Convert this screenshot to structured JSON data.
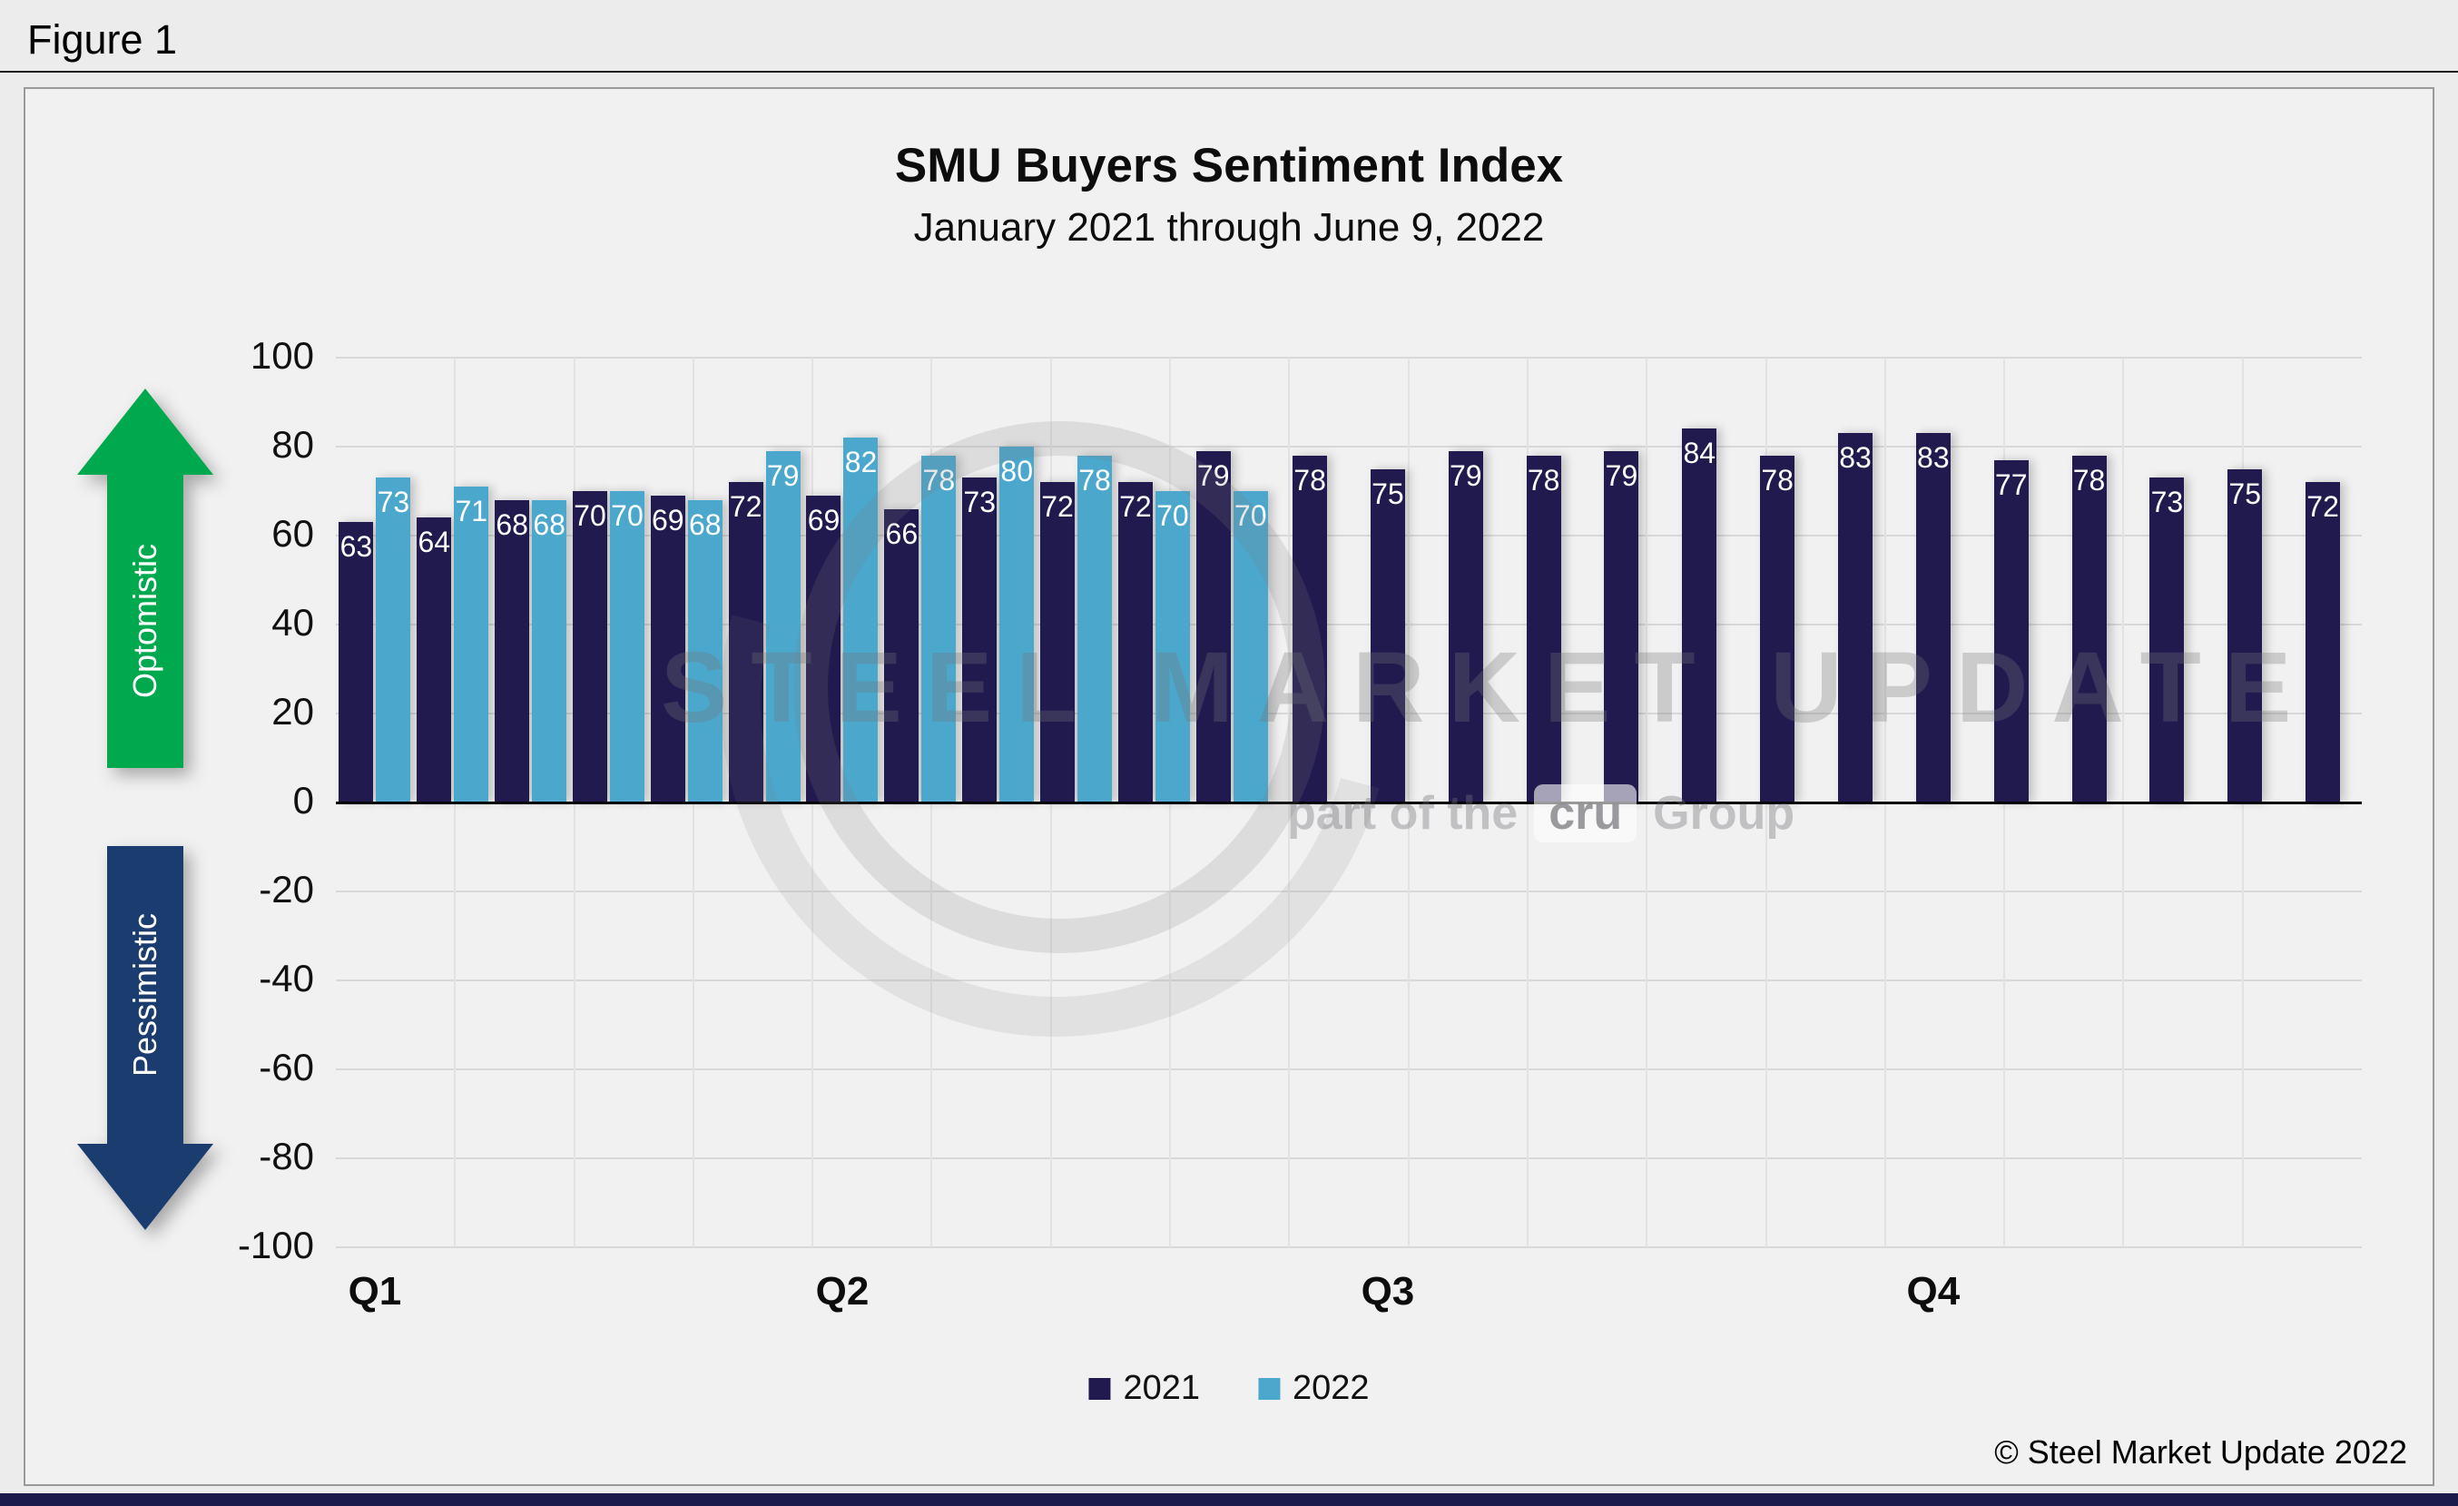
{
  "figure_label": "Figure 1",
  "axis_annotations": {
    "up": "Optomistic",
    "down": "Pessimistic"
  },
  "watermark": {
    "main": "STEEL MARKET UPDATE",
    "sub_prefix": "part of the",
    "sub_logo": "cru",
    "sub_suffix": "Group"
  },
  "copyright": "© Steel Market Update 2022",
  "colors": {
    "page_bg": "#ECECEC",
    "chart_bg": "#F1F1F1",
    "plot_bg": "#F1F1F1",
    "grid": "#D8D8D8",
    "grid_vertical": "#E2E2E2",
    "zero_axis": "#000000",
    "bar_2021": "#211A4F",
    "bar_2022": "#4BA7CB",
    "arrow_up_green": "#00A94E",
    "arrow_down_navy": "#1B3C6E",
    "bottom_bar": "#1A1A4D"
  },
  "chart_data": {
    "type": "bar",
    "title": "SMU Buyers Sentiment Index",
    "subtitle": "January 2021 through June 9, 2022",
    "ylim": [
      -100,
      100
    ],
    "yticks": [
      100,
      80,
      60,
      40,
      20,
      0,
      -20,
      -40,
      -60,
      -80,
      -100
    ],
    "x_quarter_labels": [
      "Q1",
      "Q2",
      "Q3",
      "Q4"
    ],
    "quarter_start_slots": [
      1,
      7,
      14,
      21
    ],
    "n_slots": 26,
    "grid": true,
    "legend_position": "bottom",
    "series": [
      {
        "name": "2021",
        "color": "#211A4F",
        "values": [
          63,
          64,
          68,
          70,
          69,
          72,
          69,
          66,
          73,
          72,
          72,
          79,
          78,
          75,
          79,
          78,
          79,
          84,
          78,
          83,
          83,
          77,
          78,
          73,
          75,
          72
        ]
      },
      {
        "name": "2022",
        "color": "#4BA7CB",
        "values": [
          73,
          71,
          68,
          70,
          68,
          79,
          82,
          78,
          80,
          78,
          70,
          70
        ]
      }
    ]
  }
}
